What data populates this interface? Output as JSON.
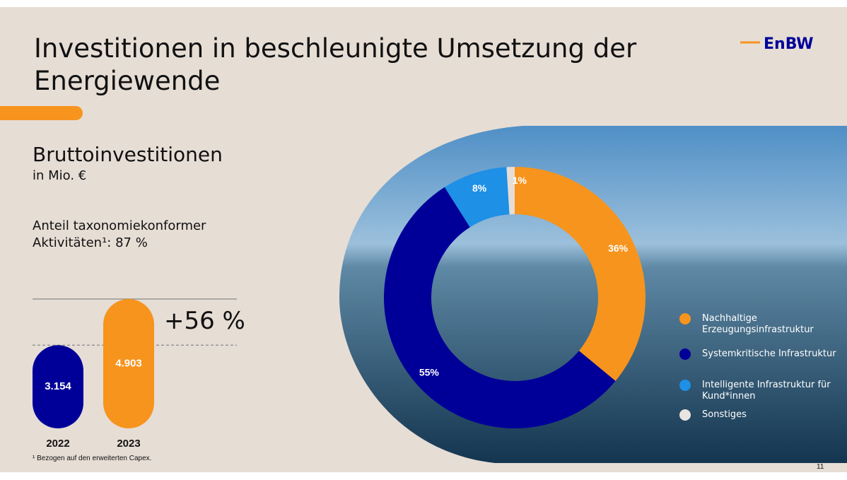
{
  "slide": {
    "title": "Investitionen in beschleunigte Umsetzung der Energiewende",
    "logo": "EnBW",
    "subtitle": "Bruttoinvestitionen",
    "unit": "in Mio. €",
    "taxonomy_note": "Anteil taxonomiekonformer Aktivitäten¹: 87 %",
    "footnote": "¹ Bezogen auf den erweiterten Capex.",
    "page_number": "11"
  },
  "chart_data": [
    {
      "type": "bar",
      "categories": [
        "2022",
        "2023"
      ],
      "values": [
        3154,
        4903
      ],
      "value_labels": [
        "3.154",
        "4.903"
      ],
      "colors": [
        "#000099",
        "#f7941d"
      ],
      "annotation": "+56 %"
    },
    {
      "type": "pie",
      "categories": [
        "Nachhaltige Erzeugungsinfrastruktur",
        "Systemkritische Infrastruktur",
        "Intelligente Infrastruktur für Kund*innen",
        "Sonstiges"
      ],
      "values": [
        36,
        55,
        8,
        1
      ],
      "value_labels": [
        "36%",
        "55%",
        "8%",
        "1%"
      ],
      "colors": [
        "#f7941d",
        "#000099",
        "#1e90e6",
        "#e6ddd5"
      ]
    }
  ]
}
